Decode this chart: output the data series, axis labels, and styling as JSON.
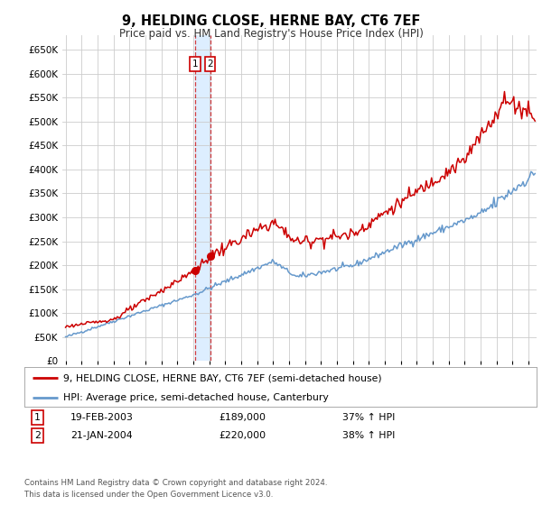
{
  "title": "9, HELDING CLOSE, HERNE BAY, CT6 7EF",
  "subtitle": "Price paid vs. HM Land Registry's House Price Index (HPI)",
  "legend_line1": "9, HELDING CLOSE, HERNE BAY, CT6 7EF (semi-detached house)",
  "legend_line2": "HPI: Average price, semi-detached house, Canterbury",
  "transaction1_date": "19-FEB-2003",
  "transaction1_price": "£189,000",
  "transaction1_hpi": "37% ↑ HPI",
  "transaction2_date": "21-JAN-2004",
  "transaction2_price": "£220,000",
  "transaction2_hpi": "38% ↑ HPI",
  "footnote1": "Contains HM Land Registry data © Crown copyright and database right 2024.",
  "footnote2": "This data is licensed under the Open Government Licence v3.0.",
  "red_color": "#cc0000",
  "blue_color": "#6699cc",
  "background_color": "#ffffff",
  "grid_color": "#cccccc",
  "highlight_color": "#ddeeff",
  "transaction1_x": 2003.12,
  "transaction2_x": 2004.05,
  "transaction1_y_red": 189000,
  "transaction2_y_red": 220000,
  "ylim_max": 680000,
  "xlim_start": 1994.8,
  "xlim_end": 2024.5,
  "yticks": [
    0,
    50000,
    100000,
    150000,
    200000,
    250000,
    300000,
    350000,
    400000,
    450000,
    500000,
    550000,
    600000,
    650000
  ],
  "xticks": [
    1995,
    1996,
    1997,
    1998,
    1999,
    2000,
    2001,
    2002,
    2003,
    2004,
    2005,
    2006,
    2007,
    2008,
    2009,
    2010,
    2011,
    2012,
    2013,
    2014,
    2015,
    2016,
    2017,
    2018,
    2019,
    2020,
    2021,
    2022,
    2023,
    2024
  ]
}
